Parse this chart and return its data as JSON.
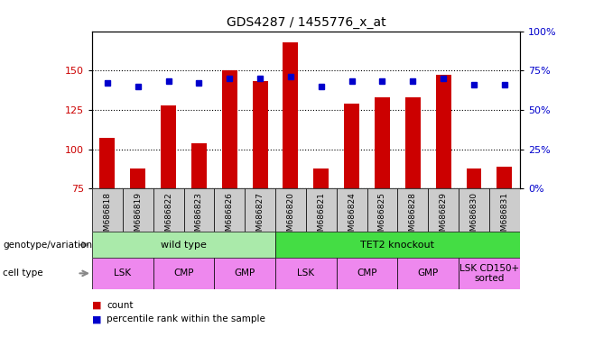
{
  "title": "GDS4287 / 1455776_x_at",
  "samples": [
    "GSM686818",
    "GSM686819",
    "GSM686822",
    "GSM686823",
    "GSM686826",
    "GSM686827",
    "GSM686820",
    "GSM686821",
    "GSM686824",
    "GSM686825",
    "GSM686828",
    "GSM686829",
    "GSM686830",
    "GSM686831"
  ],
  "counts": [
    107,
    88,
    128,
    104,
    150,
    143,
    168,
    88,
    129,
    133,
    133,
    147,
    88,
    89
  ],
  "percentile_ranks": [
    67,
    65,
    68,
    67,
    70,
    70,
    71,
    65,
    68,
    68,
    68,
    70,
    66,
    66
  ],
  "y_min": 75,
  "y_max": 175,
  "y_ticks_left": [
    75,
    100,
    125,
    150
  ],
  "y_ticks_right": [
    0,
    25,
    50,
    75,
    100
  ],
  "bar_color": "#cc0000",
  "dot_color": "#0000cc",
  "background_color": "#ffffff",
  "sample_bg_color": "#cccccc",
  "genotype_groups": [
    {
      "label": "wild type",
      "start": 0,
      "end": 6,
      "color": "#aaeaaa"
    },
    {
      "label": "TET2 knockout",
      "start": 6,
      "end": 14,
      "color": "#44dd44"
    }
  ],
  "cell_type_groups": [
    {
      "label": "LSK",
      "start": 0,
      "end": 2,
      "color": "#ee88ee"
    },
    {
      "label": "CMP",
      "start": 2,
      "end": 4,
      "color": "#ee88ee"
    },
    {
      "label": "GMP",
      "start": 4,
      "end": 6,
      "color": "#ee88ee"
    },
    {
      "label": "LSK",
      "start": 6,
      "end": 8,
      "color": "#ee88ee"
    },
    {
      "label": "CMP",
      "start": 8,
      "end": 10,
      "color": "#ee88ee"
    },
    {
      "label": "GMP",
      "start": 10,
      "end": 12,
      "color": "#ee88ee"
    },
    {
      "label": "LSK CD150+\nsorted",
      "start": 12,
      "end": 14,
      "color": "#ee88ee"
    }
  ],
  "legend_count_color": "#cc0000",
  "legend_dot_color": "#0000cc"
}
